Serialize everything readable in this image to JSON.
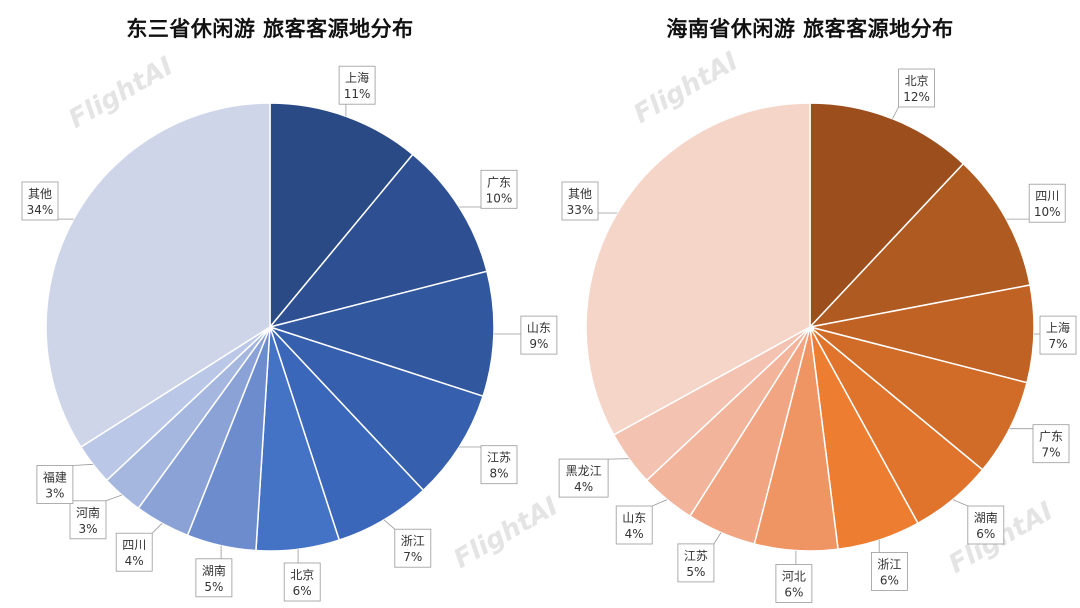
{
  "watermark": "FlightAI",
  "chart_data": [
    {
      "type": "pie",
      "title": "东三省休闲游 旅客客源地分布",
      "slices": [
        {
          "name": "上海",
          "value": 11,
          "label": "11%",
          "color": "#2a4a86"
        },
        {
          "name": "广东",
          "value": 10,
          "label": "10%",
          "color": "#2e5093"
        },
        {
          "name": "山东",
          "value": 9,
          "label": "9%",
          "color": "#31579f"
        },
        {
          "name": "江苏",
          "value": 8,
          "label": "8%",
          "color": "#365fad"
        },
        {
          "name": "浙江",
          "value": 7,
          "label": "7%",
          "color": "#3b67ba"
        },
        {
          "name": "北京",
          "value": 6,
          "label": "6%",
          "color": "#4472c4"
        },
        {
          "name": "湖南",
          "value": 5,
          "label": "5%",
          "color": "#6d8cce"
        },
        {
          "name": "四川",
          "value": 4,
          "label": "4%",
          "color": "#8aa2d6"
        },
        {
          "name": "河南",
          "value": 3,
          "label": "3%",
          "color": "#a5b6df"
        },
        {
          "name": "福建",
          "value": 3,
          "label": "3%",
          "color": "#bbc7e6"
        },
        {
          "name": "其他",
          "value": 34,
          "label": "34%",
          "color": "#cfd5e9"
        }
      ]
    },
    {
      "type": "pie",
      "title": "海南省休闲游 旅客客源地分布",
      "slices": [
        {
          "name": "北京",
          "value": 12,
          "label": "12%",
          "color": "#9c4f1c"
        },
        {
          "name": "四川",
          "value": 10,
          "label": "10%",
          "color": "#af5a20"
        },
        {
          "name": "上海",
          "value": 7,
          "label": "7%",
          "color": "#c06224"
        },
        {
          "name": "广东",
          "value": 7,
          "label": "7%",
          "color": "#d06b28"
        },
        {
          "name": "湖南",
          "value": 6,
          "label": "6%",
          "color": "#e0742c"
        },
        {
          "name": "浙江",
          "value": 6,
          "label": "6%",
          "color": "#ed7d31"
        },
        {
          "name": "河北",
          "value": 6,
          "label": "6%",
          "color": "#ef9463"
        },
        {
          "name": "江苏",
          "value": 5,
          "label": "5%",
          "color": "#f1a582"
        },
        {
          "name": "山东",
          "value": 4,
          "label": "4%",
          "color": "#f2b49b"
        },
        {
          "name": "黑龙江",
          "value": 4,
          "label": "4%",
          "color": "#f3c2b1"
        },
        {
          "name": "其他",
          "value": 33,
          "label": "33%",
          "color": "#f5d5c8"
        }
      ]
    }
  ]
}
